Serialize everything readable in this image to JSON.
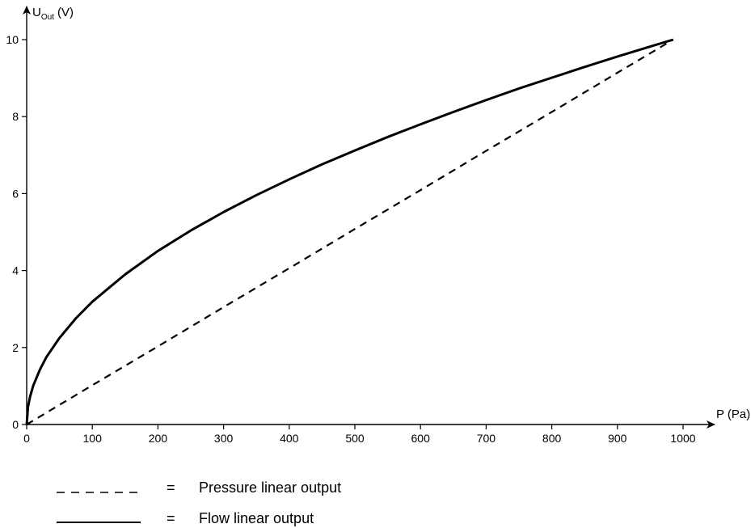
{
  "chart_data": {
    "type": "line",
    "xlabel": "P (Pa)",
    "ylabel": {
      "main": "U",
      "subscript": "Out",
      "unit": "(V)"
    },
    "xlim": [
      0,
      1000
    ],
    "ylim": [
      0,
      10
    ],
    "x_ticks": [
      0,
      100,
      200,
      300,
      400,
      500,
      600,
      700,
      800,
      900,
      1000
    ],
    "y_ticks": [
      0,
      2,
      4,
      6,
      8,
      10
    ],
    "grid": false,
    "series": [
      {
        "name": "Pressure linear output",
        "style": "dashed",
        "x": [
          0,
          100,
          200,
          300,
          400,
          500,
          600,
          700,
          800,
          900,
          985
        ],
        "y": [
          0,
          1.02,
          2.03,
          3.05,
          4.06,
          5.08,
          6.09,
          7.11,
          8.12,
          9.14,
          10.0
        ]
      },
      {
        "name": "Flow linear output",
        "style": "solid",
        "x": [
          0,
          2,
          5,
          10,
          20,
          30,
          50,
          75,
          100,
          150,
          200,
          250,
          300,
          350,
          400,
          450,
          500,
          550,
          600,
          650,
          700,
          750,
          800,
          850,
          900,
          950,
          985
        ],
        "y": [
          0,
          0.45,
          0.71,
          1.01,
          1.42,
          1.75,
          2.25,
          2.76,
          3.19,
          3.9,
          4.51,
          5.04,
          5.52,
          5.96,
          6.37,
          6.76,
          7.12,
          7.47,
          7.8,
          8.12,
          8.43,
          8.73,
          9.01,
          9.29,
          9.56,
          9.82,
          10.0
        ]
      }
    ],
    "legend": {
      "placement": "bottom-left",
      "entries": [
        {
          "separator": "=",
          "label": "Pressure linear output",
          "style": "dashed"
        },
        {
          "separator": "=",
          "label": "Flow linear output",
          "style": "solid"
        }
      ]
    }
  }
}
